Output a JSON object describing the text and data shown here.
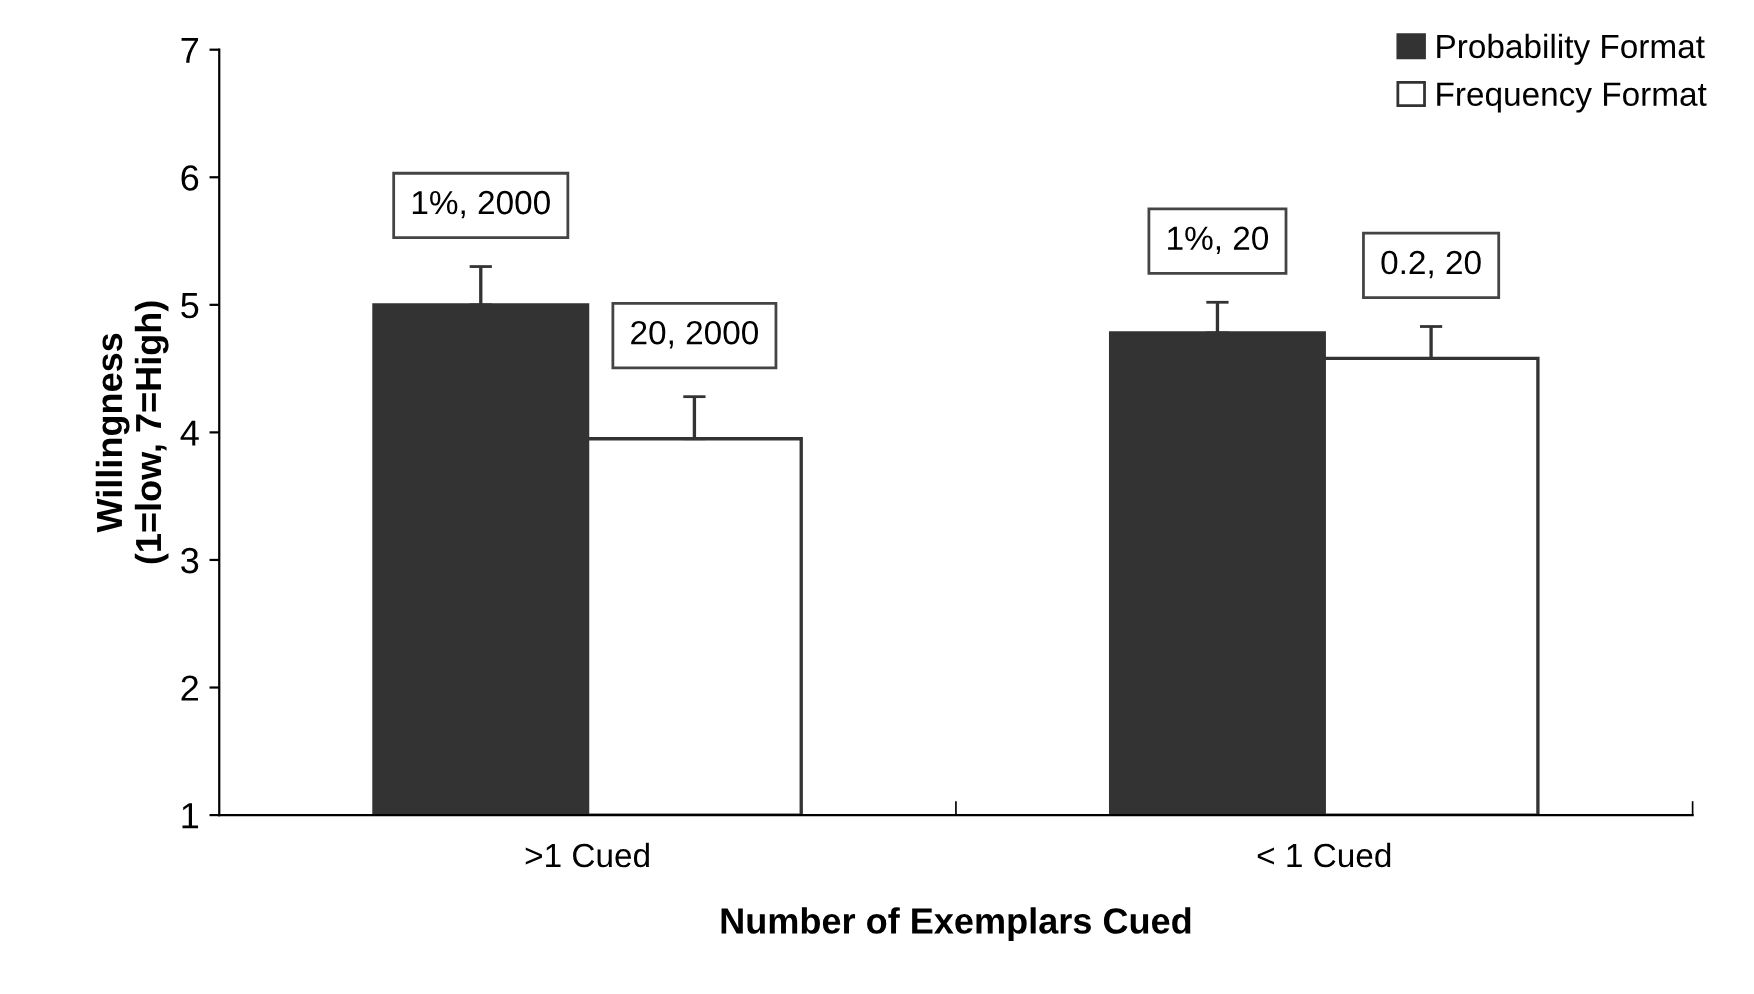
{
  "chart_data": {
    "type": "bar",
    "xlabel": "Number of Exemplars Cued",
    "ylabel": "Willingness\n(1=low, 7=High)",
    "categories": [
      ">1 Cued",
      "< 1 Cued"
    ],
    "series": [
      {
        "name": "Probability Format",
        "color": "#333333",
        "values": [
          5.0,
          4.78
        ],
        "errors": [
          [
            5.0,
            5.3
          ],
          [
            4.78,
            5.02
          ]
        ]
      },
      {
        "name": "Frequency Format",
        "color": "#ffffff",
        "values": [
          3.95,
          4.58
        ],
        "errors": [
          [
            3.95,
            4.28
          ],
          [
            4.58,
            4.83
          ]
        ]
      }
    ],
    "annotations": [
      "1%, 2000",
      "20, 2000",
      "1%, 20",
      "0.2, 20"
    ],
    "ylim": [
      1,
      7
    ],
    "yticks": [
      1,
      2,
      3,
      4,
      5,
      6,
      7
    ],
    "grid": false,
    "legend": "top right"
  }
}
